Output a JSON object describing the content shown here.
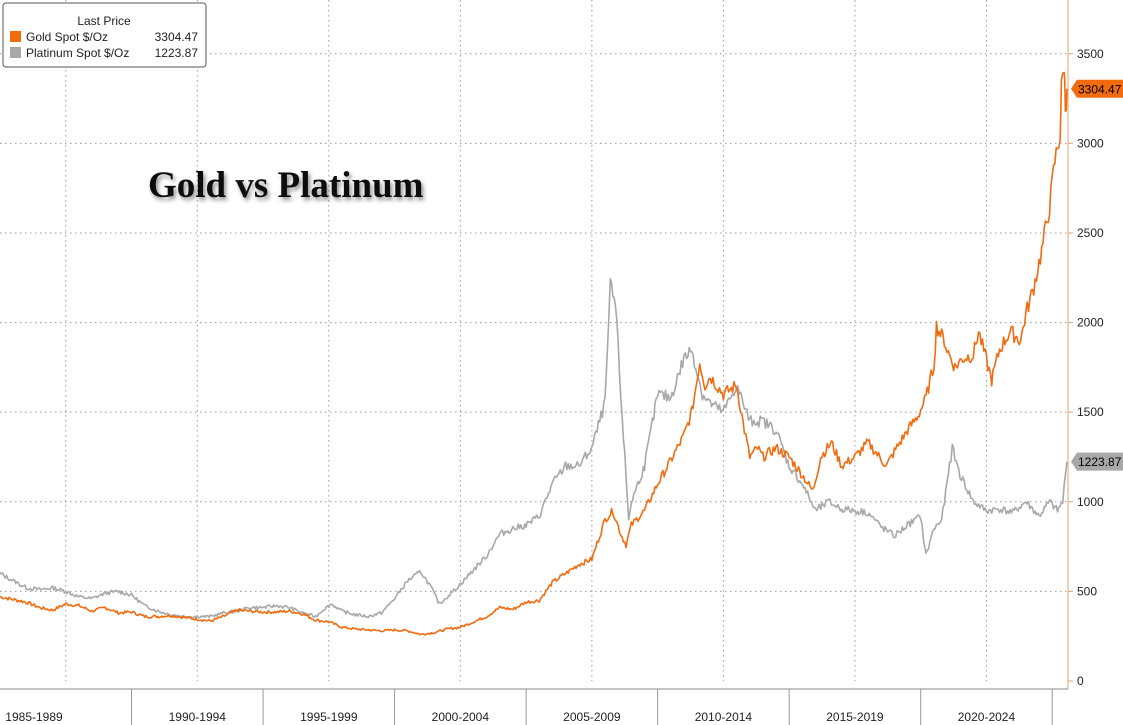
{
  "chart_data": {
    "type": "line",
    "title": "Gold vs Platinum",
    "legend": {
      "header": "Last Price",
      "placement": "top-left",
      "entries": [
        {
          "name": "Gold Spot $/Oz",
          "last": "3304.47",
          "color": "#F26B0F"
        },
        {
          "name": "Platinum Spot $/Oz",
          "last": "1223.87",
          "color": "#A8A8A8"
        }
      ]
    },
    "y_axis": {
      "side": "right",
      "ylim": [
        0,
        3800
      ],
      "ticks": [
        0,
        500,
        1000,
        1500,
        2000,
        2500,
        3000,
        3500
      ]
    },
    "x_axis": {
      "xlim": [
        1985.0,
        2025.6
      ],
      "period_labels": [
        "1985-1989",
        "1990-1994",
        "1995-1999",
        "2000-2004",
        "2005-2009",
        "2010-2014",
        "2015-2019",
        "2020-2024"
      ],
      "gridlines": [
        1987.5,
        1992.5,
        1997.5,
        2002.5,
        2007.5,
        2012.5,
        2017.5,
        2022.5
      ]
    },
    "grid": true,
    "last_value_badges": [
      {
        "series": "Gold Spot $/Oz",
        "text": "3304.47",
        "value": 3304.47,
        "color": "#F26B0F"
      },
      {
        "series": "Platinum Spot $/Oz",
        "text": "1223.87",
        "value": 1223.87,
        "color": "#A8A8A8"
      }
    ],
    "series": [
      {
        "name": "Gold Spot $/Oz",
        "color": "#F26B0F",
        "x": [
          1985.0,
          1985.5,
          1986.0,
          1986.5,
          1987.0,
          1987.5,
          1988.0,
          1988.5,
          1989.0,
          1989.5,
          1990.0,
          1990.5,
          1991.0,
          1991.5,
          1992.0,
          1992.5,
          1993.0,
          1993.5,
          1994.0,
          1994.5,
          1995.0,
          1995.5,
          1996.0,
          1996.5,
          1997.0,
          1997.5,
          1998.0,
          1998.5,
          1999.0,
          1999.5,
          2000.0,
          2000.5,
          2001.0,
          2001.5,
          2002.0,
          2002.5,
          2003.0,
          2003.5,
          2004.0,
          2004.5,
          2005.0,
          2005.5,
          2006.0,
          2006.5,
          2007.0,
          2007.5,
          2008.0,
          2008.3,
          2008.6,
          2008.8,
          2009.0,
          2009.5,
          2010.0,
          2010.5,
          2011.0,
          2011.3,
          2011.6,
          2011.8,
          2012.0,
          2012.5,
          2013.0,
          2013.3,
          2013.5,
          2013.8,
          2014.0,
          2014.5,
          2015.0,
          2015.5,
          2015.9,
          2016.2,
          2016.6,
          2017.0,
          2017.5,
          2018.0,
          2018.7,
          2019.0,
          2019.5,
          2019.9,
          2020.2,
          2020.5,
          2020.6,
          2020.9,
          2021.0,
          2021.3,
          2021.6,
          2022.0,
          2022.2,
          2022.7,
          2023.0,
          2023.4,
          2023.8,
          2024.0,
          2024.3,
          2024.6,
          2024.9,
          2025.1,
          2025.3,
          2025.35,
          2025.45,
          2025.5,
          2025.56
        ],
        "y": [
          470,
          455,
          440,
          410,
          395,
          430,
          420,
          390,
          410,
          380,
          385,
          360,
          360,
          365,
          355,
          345,
          335,
          360,
          395,
          390,
          385,
          385,
          390,
          375,
          340,
          330,
          300,
          290,
          285,
          280,
          285,
          280,
          260,
          270,
          290,
          300,
          330,
          360,
          410,
          400,
          440,
          450,
          550,
          600,
          650,
          680,
          900,
          950,
          820,
          760,
          870,
          950,
          1100,
          1230,
          1370,
          1500,
          1780,
          1650,
          1700,
          1600,
          1650,
          1400,
          1250,
          1300,
          1250,
          1300,
          1250,
          1150,
          1060,
          1250,
          1330,
          1200,
          1250,
          1330,
          1200,
          1280,
          1400,
          1480,
          1580,
          1760,
          1980,
          1900,
          1850,
          1750,
          1800,
          1820,
          1950,
          1680,
          1850,
          1950,
          1900,
          2050,
          2200,
          2400,
          2650,
          2900,
          3050,
          3300,
          3450,
          3200,
          3304.47
        ]
      },
      {
        "name": "Platinum Spot $/Oz",
        "color": "#A8A8A8",
        "x": [
          1985.0,
          1985.5,
          1986.0,
          1986.5,
          1987.0,
          1987.5,
          1988.0,
          1988.5,
          1989.0,
          1989.5,
          1990.0,
          1990.5,
          1991.0,
          1991.5,
          1992.0,
          1992.5,
          1993.0,
          1993.5,
          1994.0,
          1994.5,
          1995.0,
          1995.5,
          1996.0,
          1996.5,
          1997.0,
          1997.3,
          1997.6,
          1998.0,
          1998.5,
          1999.0,
          1999.5,
          2000.0,
          2000.5,
          2001.0,
          2001.4,
          2001.7,
          2002.0,
          2002.5,
          2003.0,
          2003.5,
          2004.0,
          2004.5,
          2005.0,
          2005.5,
          2006.0,
          2006.5,
          2007.0,
          2007.5,
          2008.0,
          2008.2,
          2008.4,
          2008.6,
          2008.9,
          2009.0,
          2009.5,
          2010.0,
          2010.5,
          2011.0,
          2011.3,
          2011.7,
          2012.0,
          2012.5,
          2013.0,
          2013.5,
          2014.0,
          2014.5,
          2015.0,
          2015.5,
          2016.0,
          2016.5,
          2017.0,
          2017.5,
          2018.0,
          2018.5,
          2019.0,
          2019.5,
          2020.0,
          2020.2,
          2020.5,
          2020.8,
          2021.0,
          2021.2,
          2021.5,
          2022.0,
          2022.5,
          2023.0,
          2023.5,
          2024.0,
          2024.5,
          2024.9,
          2025.2,
          2025.4,
          2025.56
        ],
        "y": [
          600,
          560,
          520,
          510,
          520,
          500,
          470,
          460,
          490,
          500,
          480,
          420,
          390,
          370,
          360,
          360,
          360,
          380,
          390,
          410,
          410,
          420,
          410,
          380,
          360,
          400,
          430,
          390,
          370,
          360,
          380,
          460,
          560,
          610,
          520,
          430,
          470,
          540,
          620,
          700,
          820,
          850,
          870,
          920,
          1100,
          1200,
          1200,
          1300,
          1550,
          2200,
          2100,
          1600,
          900,
          1000,
          1200,
          1600,
          1580,
          1800,
          1850,
          1600,
          1550,
          1500,
          1650,
          1450,
          1450,
          1400,
          1200,
          1100,
          950,
          1000,
          960,
          950,
          940,
          860,
          810,
          870,
          920,
          700,
          850,
          900,
          1100,
          1300,
          1150,
          1000,
          950,
          960,
          940,
          1000,
          920,
          1000,
          950,
          1000,
          1223.87
        ]
      }
    ]
  }
}
